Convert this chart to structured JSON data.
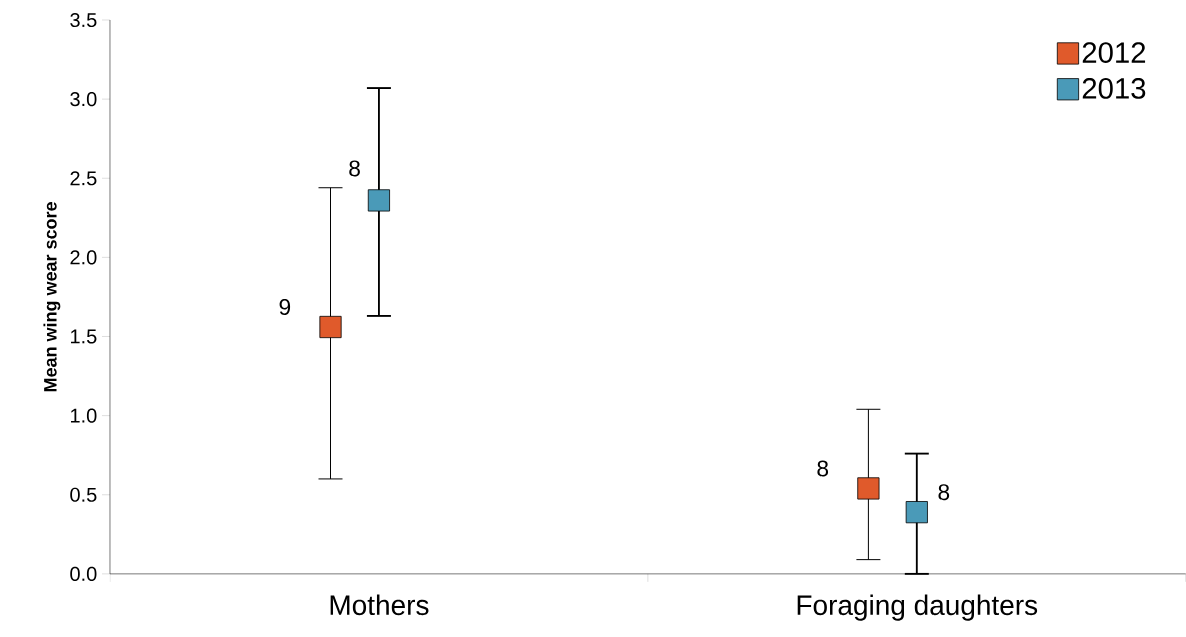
{
  "chart_data": {
    "type": "scatter",
    "ylabel": "Mean wing wear score",
    "categories": [
      "Mothers",
      "Foraging daughters"
    ],
    "series": [
      {
        "name": "2012",
        "color": "#e05a2b",
        "values": [
          1.56,
          0.54
        ],
        "errors": [
          [
            0.6,
            2.44
          ],
          [
            0.09,
            1.04
          ]
        ]
      },
      {
        "name": "2013",
        "color": "#4a9ab8",
        "values": [
          2.36,
          0.39
        ],
        "errors": [
          [
            1.63,
            3.07
          ],
          [
            0.0,
            0.76
          ]
        ]
      }
    ],
    "annotations": [
      "9",
      "8",
      "8",
      "8"
    ],
    "ylim": [
      0,
      3.5
    ],
    "yticks": [
      {
        "value": 0,
        "label": "0.0"
      },
      {
        "value": 0.5,
        "label": "0.5"
      },
      {
        "value": 1,
        "label": "1.0"
      },
      {
        "value": 1.5,
        "label": "1.5"
      },
      {
        "value": 2,
        "label": "2.0"
      },
      {
        "value": 2.5,
        "label": "2.5"
      },
      {
        "value": 3,
        "label": "3.0"
      },
      {
        "value": 3.5,
        "label": "3.5"
      }
    ],
    "marker": "square",
    "legend": "top right",
    "grid": false
  }
}
